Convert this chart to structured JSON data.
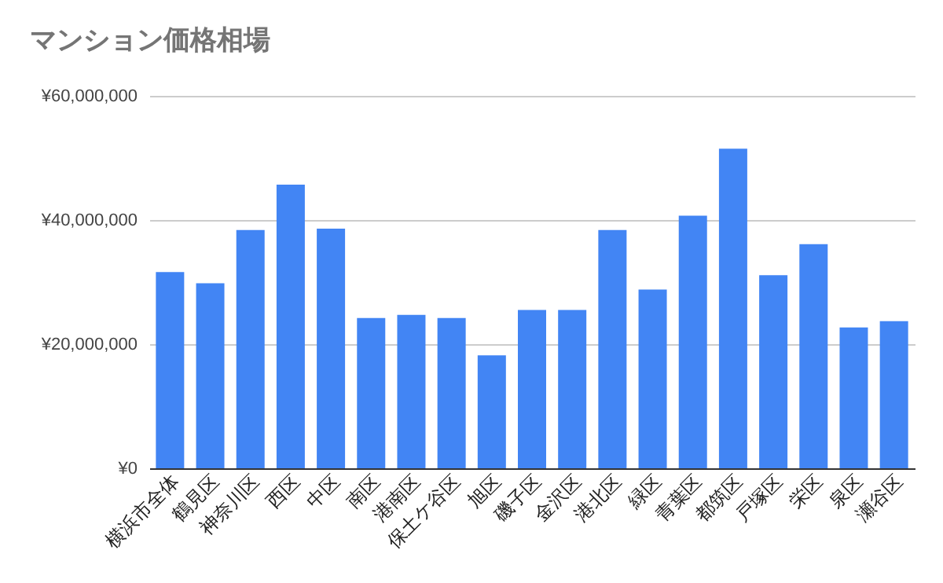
{
  "chart_data": {
    "type": "bar",
    "title": "マンション価格相場",
    "categories": [
      "横浜市全体",
      "鶴見区",
      "神奈川区",
      "西区",
      "中区",
      "南区",
      "港南区",
      "保土ケ谷区",
      "旭区",
      "磯子区",
      "金沢区",
      "港北区",
      "緑区",
      "青葉区",
      "都筑区",
      "戸塚区",
      "栄区",
      "泉区",
      "瀬谷区"
    ],
    "values": [
      31600000,
      29800000,
      38400000,
      45700000,
      38600000,
      24200000,
      24700000,
      24200000,
      18200000,
      25500000,
      25500000,
      38400000,
      28800000,
      40700000,
      51500000,
      31100000,
      36100000,
      22700000,
      23700000
    ],
    "color": "#4285f4",
    "ylim": [
      0,
      60000000
    ],
    "yticks": [
      {
        "value": 0,
        "label": "¥0"
      },
      {
        "value": 20000000,
        "label": "¥20,000,000"
      },
      {
        "value": 40000000,
        "label": "¥40,000,000"
      },
      {
        "value": 60000000,
        "label": "¥60,000,000"
      }
    ],
    "grid": "y"
  }
}
